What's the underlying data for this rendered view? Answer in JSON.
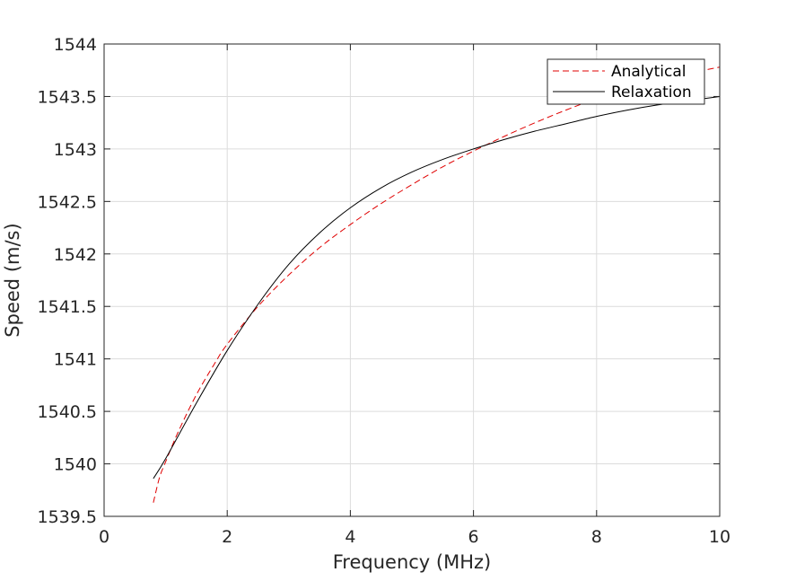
{
  "chart_data": {
    "type": "line",
    "title": "",
    "xlabel": "Frequency (MHz)",
    "ylabel": "Speed (m/s)",
    "xlim": [
      0,
      10
    ],
    "ylim": [
      1539.5,
      1544
    ],
    "xticks": [
      "0",
      "2",
      "4",
      "6",
      "8",
      "10"
    ],
    "yticks": [
      "1539.5",
      "1540",
      "1540.5",
      "1541",
      "1541.5",
      "1542",
      "1542.5",
      "1543",
      "1543.5",
      "1544"
    ],
    "grid": true,
    "legend_position": "top-right",
    "series": [
      {
        "name": "Analytical",
        "color": "#e00000",
        "dash": "dashed",
        "x": [
          0.8,
          0.9,
          1.0,
          1.2,
          1.5,
          1.8,
          2.0,
          2.5,
          3.0,
          3.5,
          4.0,
          4.5,
          5.0,
          5.5,
          6.0,
          6.5,
          7.0,
          7.5,
          8.0,
          8.5,
          9.0,
          9.5,
          10.0
        ],
        "y": [
          1539.63,
          1539.87,
          1540.02,
          1540.3,
          1540.66,
          1540.96,
          1541.14,
          1541.5,
          1541.8,
          1542.06,
          1542.28,
          1542.48,
          1542.66,
          1542.83,
          1542.98,
          1543.12,
          1543.25,
          1543.37,
          1543.48,
          1543.57,
          1543.65,
          1543.72,
          1543.78
        ]
      },
      {
        "name": "Relaxation",
        "color": "#000000",
        "dash": "solid",
        "x": [
          0.8,
          1.0,
          1.5,
          2.0,
          2.5,
          3.0,
          3.5,
          4.0,
          4.5,
          5.0,
          5.5,
          6.0,
          6.5,
          7.0,
          7.5,
          8.0,
          8.5,
          9.0,
          9.5,
          10.0
        ],
        "y": [
          1539.86,
          1540.05,
          1540.58,
          1541.08,
          1541.52,
          1541.9,
          1542.2,
          1542.44,
          1542.63,
          1542.78,
          1542.9,
          1543.0,
          1543.09,
          1543.17,
          1543.24,
          1543.31,
          1543.37,
          1543.42,
          1543.46,
          1543.5
        ]
      }
    ]
  }
}
